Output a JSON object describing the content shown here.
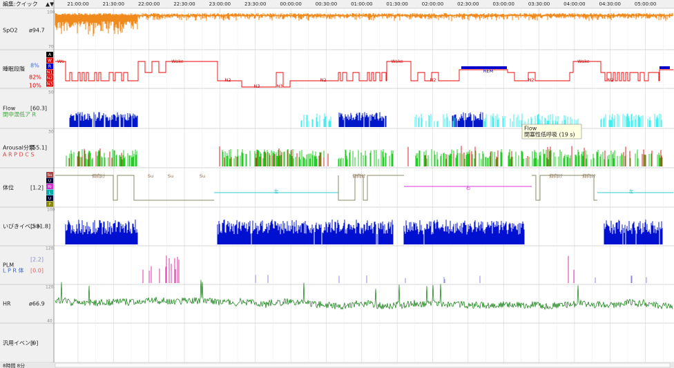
{
  "toolbar": {
    "mode": "編集:クイック"
  },
  "time_axis": [
    "21:00:00",
    "21:30:00",
    "22:00:00",
    "22:30:00",
    "23:00:00",
    "23:30:00",
    "00:00:00",
    "00:30:00",
    "01:00:00",
    "01:30:00",
    "02:00:00",
    "02:30:00",
    "03:00:00",
    "03:30:00",
    "04:00:00",
    "04:30:00",
    "05:00:00"
  ],
  "rows": {
    "spo2": {
      "label": "SpO2",
      "value": "ø94.7",
      "scale_top": "100",
      "scale_bottom": "70"
    },
    "stage": {
      "label": "睡眠段階",
      "percents": [
        "8%",
        "82%",
        "10%"
      ],
      "levels": [
        "A",
        "W",
        "R",
        "N1",
        "N2",
        "N3"
      ],
      "annotations": [
        "Wa",
        "Wake",
        "Wake",
        "Wake",
        "N2",
        "N3",
        "N3",
        "N2",
        "N2",
        "REM",
        "N2",
        "N2"
      ]
    },
    "flow": {
      "label": "Flow",
      "value": "[60.3]",
      "legend": "閉中混低ア R",
      "scale_top": "50"
    },
    "arousal": {
      "label": "Arousal分類",
      "value": "[55.1]",
      "legend": "A R P D C S",
      "scale_top": "30"
    },
    "position": {
      "label": "体位",
      "value": "[1.2]",
      "levels": [
        "Su",
        "U",
        "Ri",
        "L",
        "U",
        "P"
      ],
      "annotations": [
        "仰向け",
        "Su",
        "Su",
        "Su",
        "左",
        "仰向け",
        "右",
        "仰向け",
        "仰向け",
        "左"
      ]
    },
    "snore": {
      "label": "いびきイベント",
      "value": "[581.8]",
      "scale_top": "100"
    },
    "plm": {
      "label": "PLM",
      "value": "[2.2]",
      "value2": "[0.0]",
      "legend": "L P R 体",
      "scale_top": "120"
    },
    "hr": {
      "label": "HR",
      "value": "ø66.9",
      "scale_top": "120",
      "scale_bottom": "40"
    },
    "generic": {
      "label": "汎用イベント",
      "value": "[0]"
    }
  },
  "tooltip": {
    "title": "Flow",
    "text": "閉塞性低呼吸 (19 s)"
  },
  "footer": {
    "duration": "8時間 8分"
  }
}
